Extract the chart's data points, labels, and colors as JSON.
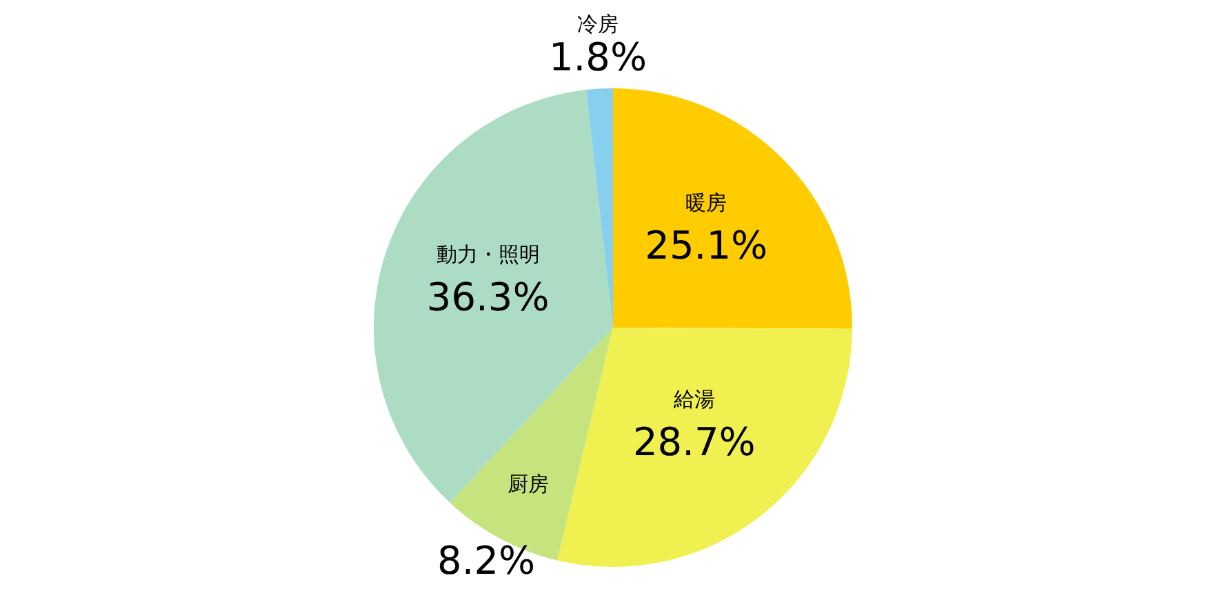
{
  "chart_data": {
    "type": "pie",
    "categories": [
      "暖房",
      "給湯",
      "厨房",
      "動力・照明",
      "冷房"
    ],
    "values": [
      25.1,
      28.7,
      8.2,
      36.3,
      1.8
    ],
    "value_labels": [
      "25.1%",
      "28.7%",
      "8.2%",
      "36.3%",
      "1.8%"
    ],
    "colors": [
      "#ffcc00",
      "#f0f050",
      "#c5e47e",
      "#addcc4",
      "#87cfee"
    ],
    "legend": false
  }
}
